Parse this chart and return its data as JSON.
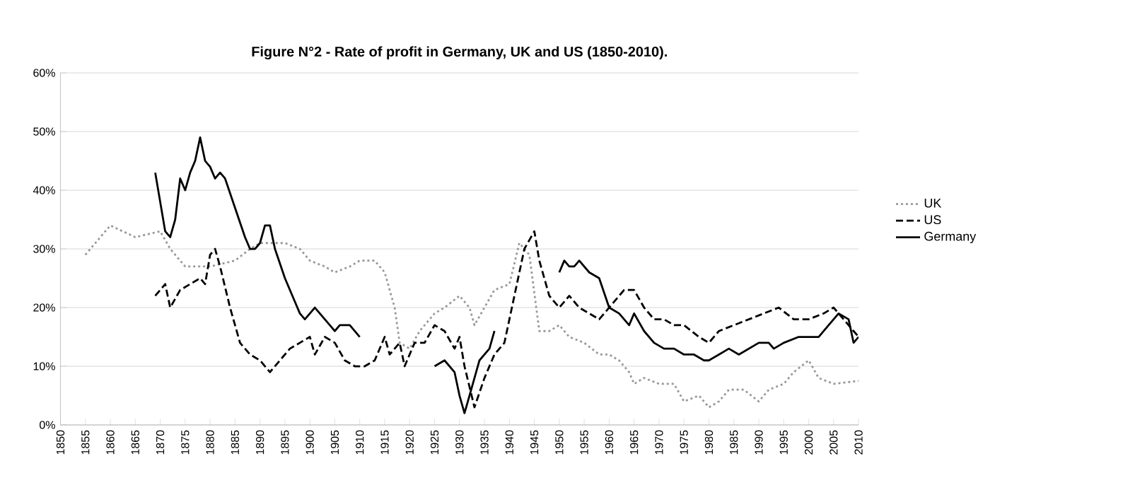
{
  "chart_data": {
    "type": "line",
    "title": "Figure N°2 - Rate of profit in Germany, UK and US (1850-2010).",
    "xlim": [
      1850,
      2010
    ],
    "xticks": [
      1850,
      1855,
      1860,
      1865,
      1870,
      1875,
      1880,
      1885,
      1890,
      1895,
      1900,
      1905,
      1910,
      1915,
      1920,
      1925,
      1930,
      1935,
      1940,
      1945,
      1950,
      1955,
      1960,
      1965,
      1970,
      1975,
      1980,
      1985,
      1990,
      1995,
      2000,
      2005,
      2010
    ],
    "ylim": [
      0,
      60
    ],
    "yticks": [
      {
        "value": 0,
        "label": "0%"
      },
      {
        "value": 10,
        "label": "10%"
      },
      {
        "value": 20,
        "label": "20%"
      },
      {
        "value": 30,
        "label": "30%"
      },
      {
        "value": 40,
        "label": "40%"
      },
      {
        "value": 50,
        "label": "50%"
      },
      {
        "value": 60,
        "label": "60%"
      }
    ],
    "grid": "y",
    "legend": "right",
    "series": [
      {
        "name": "UK",
        "color": "#999999",
        "line_style": "dotted",
        "x": [
          1855,
          1860,
          1865,
          1870,
          1872,
          1875,
          1880,
          1885,
          1888,
          1890,
          1895,
          1898,
          1900,
          1903,
          1905,
          1908,
          1910,
          1913,
          1915,
          1917,
          1918,
          1920,
          1922,
          1925,
          1927,
          1930,
          1932,
          1933,
          1935,
          1937,
          1940,
          1942,
          1944,
          1946,
          1948,
          1950,
          1952,
          1955,
          1958,
          1960,
          1962,
          1964,
          1965,
          1967,
          1970,
          1973,
          1975,
          1978,
          1980,
          1982,
          1984,
          1987,
          1990,
          1992,
          1995,
          1997,
          2000,
          2002,
          2005,
          2010
        ],
        "values": [
          29,
          34,
          32,
          33,
          30,
          27,
          27,
          28,
          30,
          31,
          31,
          30,
          28,
          27,
          26,
          27,
          28,
          28,
          26,
          20,
          14,
          13,
          16,
          19,
          20,
          22,
          20,
          17,
          20,
          23,
          24,
          31,
          29,
          16,
          16,
          17,
          15,
          14,
          12,
          12,
          11,
          9,
          7,
          8,
          7,
          7,
          4,
          5,
          3,
          4,
          6,
          6,
          4,
          6,
          7,
          9,
          11,
          8,
          7,
          7.5
        ]
      },
      {
        "name": "US",
        "color": "#000000",
        "line_style": "dashed",
        "x": [
          1869,
          1871,
          1872,
          1874,
          1876,
          1878,
          1879,
          1880,
          1881,
          1882,
          1884,
          1886,
          1888,
          1890,
          1892,
          1894,
          1896,
          1898,
          1900,
          1901,
          1903,
          1905,
          1907,
          1909,
          1911,
          1913,
          1915,
          1916,
          1918,
          1919,
          1921,
          1923,
          1925,
          1927,
          1929,
          1930,
          1931,
          1933,
          1935,
          1937,
          1939,
          1941,
          1943,
          1945,
          1946,
          1948,
          1950,
          1952,
          1954,
          1956,
          1958,
          1960,
          1963,
          1965,
          1967,
          1969,
          1971,
          1973,
          1975,
          1978,
          1980,
          1982,
          1985,
          1988,
          1991,
          1994,
          1997,
          2000,
          2003,
          2005,
          2007,
          2009,
          2010
        ],
        "values": [
          22,
          24,
          20,
          23,
          24,
          25,
          24,
          29,
          30,
          27,
          20,
          14,
          12,
          11,
          9,
          11,
          13,
          14,
          15,
          12,
          15,
          14,
          11,
          10,
          10,
          11,
          15,
          12,
          14,
          10,
          14,
          14,
          17,
          16,
          13,
          15,
          10,
          3,
          8,
          12,
          14,
          22,
          30,
          33,
          28,
          22,
          20,
          22,
          20,
          19,
          18,
          20,
          23,
          23,
          20,
          18,
          18,
          17,
          17,
          15,
          14,
          16,
          17,
          18,
          19,
          20,
          18,
          18,
          19,
          20,
          18,
          16,
          15
        ]
      },
      {
        "name": "Germany",
        "color": "#000000",
        "line_style": "solid",
        "x": [
          1869,
          1870,
          1871,
          1872,
          1873,
          1874,
          1875,
          1876,
          1877,
          1878,
          1879,
          1880,
          1881,
          1882,
          1883,
          1885,
          1887,
          1888,
          1889,
          1890,
          1891,
          1892,
          1893,
          1895,
          1897,
          1898,
          1899,
          1900,
          1901,
          1902,
          1904,
          1905,
          1906,
          1908,
          1910,
          1917,
          1925,
          1927,
          1929,
          1930,
          1931,
          1932,
          1934,
          1936,
          1937,
          1943,
          1950,
          1951,
          1952,
          1953,
          1954,
          1956,
          1958,
          1960,
          1962,
          1964,
          1965,
          1967,
          1969,
          1971,
          1973,
          1975,
          1977,
          1979,
          1980,
          1982,
          1984,
          1986,
          1988,
          1990,
          1992,
          1993,
          1995,
          1998,
          2000,
          2002,
          2004,
          2006,
          2008,
          2009,
          2010
        ],
        "values": [
          43,
          38,
          33,
          32,
          35,
          42,
          40,
          43,
          45,
          49,
          45,
          44,
          42,
          43,
          42,
          37,
          32,
          30,
          30,
          31,
          34,
          34,
          30,
          25,
          21,
          19,
          18,
          19,
          20,
          19,
          17,
          16,
          17,
          17,
          15,
          null,
          10,
          11,
          9,
          5,
          2,
          5,
          11,
          13,
          16,
          null,
          26,
          28,
          27,
          27,
          28,
          26,
          25,
          20,
          19,
          17,
          19,
          16,
          14,
          13,
          13,
          12,
          12,
          11,
          11,
          12,
          13,
          12,
          13,
          14,
          14,
          13,
          14,
          15,
          15,
          15,
          17,
          19,
          18,
          14,
          15
        ]
      }
    ]
  }
}
